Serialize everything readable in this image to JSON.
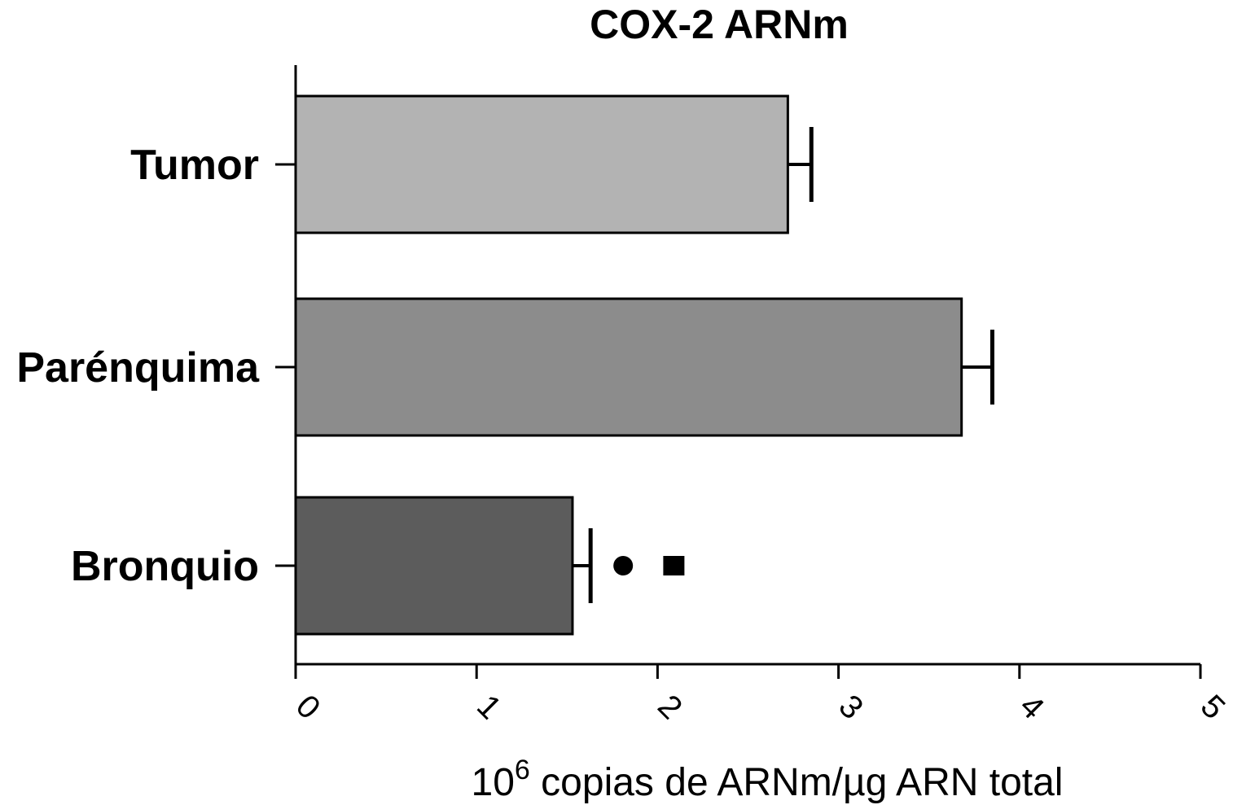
{
  "chart_data": {
    "type": "bar",
    "orientation": "horizontal",
    "title": "COX-2 ARNm",
    "categories": [
      "Tumor",
      "Parénquima",
      "Bronquio"
    ],
    "values": [
      2.72,
      3.68,
      1.53
    ],
    "errors": [
      0.13,
      0.17,
      0.1
    ],
    "colors": [
      "#b3b3b3",
      "#8c8c8c",
      "#5c5c5c"
    ],
    "xlim": [
      0,
      5
    ],
    "xticks": [
      "0",
      "1",
      "2",
      "3",
      "4",
      "5"
    ],
    "xlabel": {
      "base": "10",
      "superscript": "6",
      "rest": " copias de ARNm/µg ARN total"
    },
    "ylabel": "",
    "grid": false,
    "annotations": [
      {
        "category": "Bronquio",
        "marker": "circle",
        "x": 1.81
      },
      {
        "category": "Bronquio",
        "marker": "square",
        "x": 2.09
      }
    ]
  }
}
